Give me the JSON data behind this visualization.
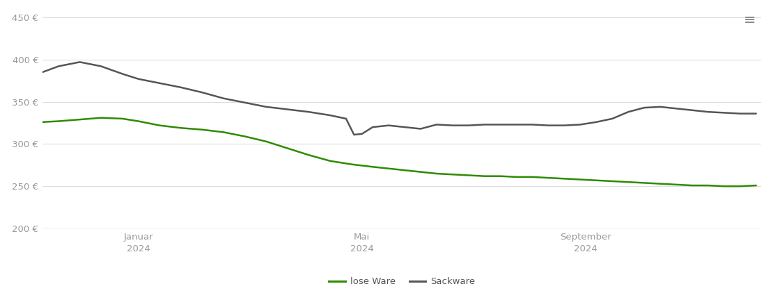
{
  "background_color": "#ffffff",
  "grid_color": "#dddddd",
  "line_lose_color": "#2e8b00",
  "line_sack_color": "#555555",
  "legend_labels": [
    "lose Ware",
    "Sackware"
  ],
  "ylim": [
    200,
    460
  ],
  "yticks": [
    200,
    250,
    300,
    350,
    400,
    450
  ],
  "ytick_labels": [
    "200 €",
    "250 €",
    "300 €",
    "350 €",
    "400 €",
    "450 €"
  ],
  "xlim": [
    0,
    13.5
  ],
  "xtick_positions": [
    1.8,
    6.0,
    10.2
  ],
  "xtick_labels": [
    "Januar\n2024",
    "Mai\n2024",
    "September\n2024"
  ],
  "lose_ware_x": [
    0.0,
    0.3,
    0.7,
    1.1,
    1.5,
    1.8,
    2.2,
    2.6,
    3.0,
    3.4,
    3.8,
    4.2,
    4.6,
    5.0,
    5.4,
    5.8,
    6.2,
    6.5,
    6.8,
    7.1,
    7.4,
    7.7,
    8.0,
    8.3,
    8.6,
    8.9,
    9.2,
    9.5,
    9.8,
    10.1,
    10.4,
    10.7,
    11.0,
    11.3,
    11.6,
    11.9,
    12.2,
    12.5,
    12.8,
    13.1,
    13.4
  ],
  "lose_ware_y": [
    326,
    327,
    329,
    331,
    330,
    327,
    322,
    319,
    317,
    314,
    309,
    303,
    295,
    287,
    280,
    276,
    273,
    271,
    269,
    267,
    265,
    264,
    263,
    262,
    262,
    261,
    261,
    260,
    259,
    258,
    257,
    256,
    255,
    254,
    253,
    252,
    251,
    251,
    250,
    250,
    251
  ],
  "sackware_x": [
    0.0,
    0.3,
    0.7,
    1.1,
    1.5,
    1.8,
    2.2,
    2.6,
    3.0,
    3.4,
    3.8,
    4.2,
    4.6,
    5.0,
    5.4,
    5.7,
    5.85,
    6.0,
    6.2,
    6.5,
    6.8,
    7.1,
    7.4,
    7.7,
    8.0,
    8.3,
    8.6,
    8.9,
    9.2,
    9.5,
    9.8,
    10.1,
    10.4,
    10.7,
    11.0,
    11.3,
    11.6,
    11.9,
    12.2,
    12.5,
    12.8,
    13.1,
    13.4
  ],
  "sackware_y": [
    385,
    392,
    397,
    392,
    383,
    377,
    372,
    367,
    361,
    354,
    349,
    344,
    341,
    338,
    334,
    330,
    311,
    312,
    320,
    322,
    320,
    318,
    323,
    322,
    322,
    323,
    323,
    323,
    323,
    322,
    322,
    323,
    326,
    330,
    338,
    343,
    344,
    342,
    340,
    338,
    337,
    336,
    336
  ]
}
